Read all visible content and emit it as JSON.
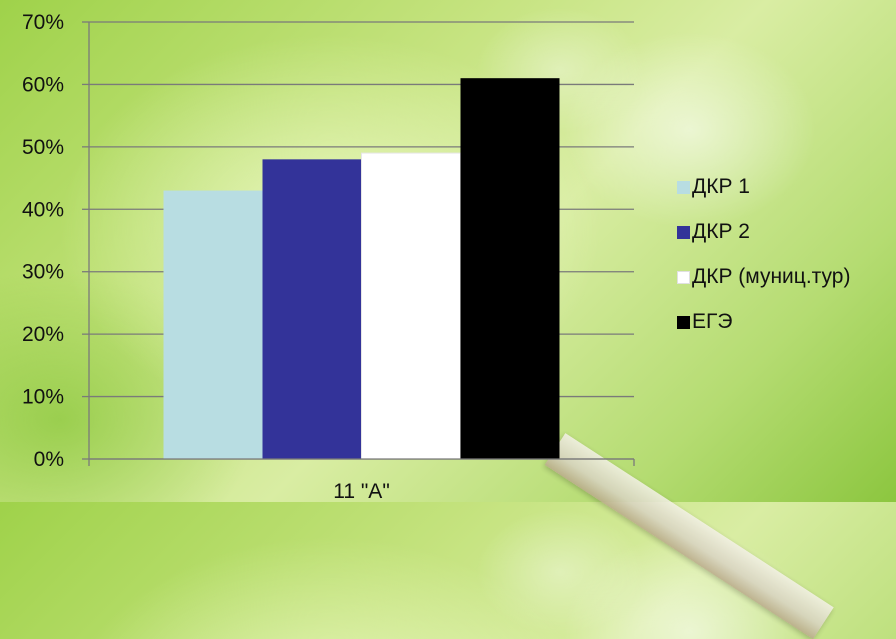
{
  "chart_data": {
    "type": "bar",
    "categories": [
      "11 \"А\""
    ],
    "series": [
      {
        "name": "ДКР 1",
        "values": [
          43
        ],
        "color": "#b8dde2"
      },
      {
        "name": "ДКР 2",
        "values": [
          48
        ],
        "color": "#333399"
      },
      {
        "name": "ДКР (муниц.тур)",
        "values": [
          49
        ],
        "color": "#ffffff"
      },
      {
        "name": "ЕГЭ",
        "values": [
          61
        ],
        "color": "#000000"
      }
    ],
    "yticks": [
      "0%",
      "10%",
      "20%",
      "30%",
      "40%",
      "50%",
      "60%",
      "70%"
    ],
    "ylim": [
      0,
      70
    ],
    "grid": true,
    "legend_position": "right",
    "title": "",
    "xlabel": "",
    "ylabel": ""
  }
}
